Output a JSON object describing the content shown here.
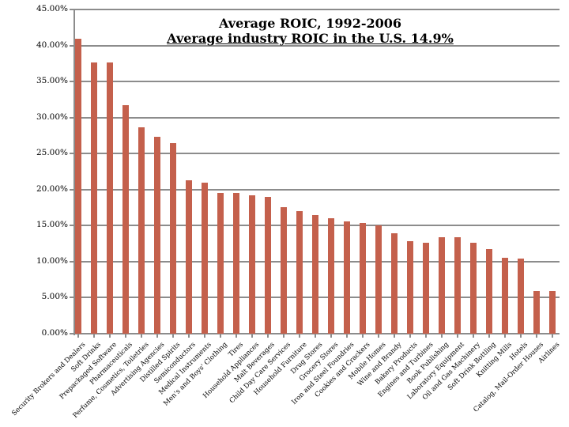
{
  "chart_data": {
    "type": "bar",
    "title": "Average ROIC, 1992-2006",
    "subtitle": "Average industry ROIC in the U.S. 14.9%",
    "categories": [
      "Security Brokers and Dealers",
      "Soft Drinks",
      "Prepackaged Software",
      "Pharmaceuticals",
      "Perfume, Cosmetics, Toiletries",
      "Advertising Agencies",
      "Distilled Spirits",
      "Semiconductors",
      "Medical Instruments",
      "Men's and Boys' Clothing",
      "Tires",
      "Household Appliances",
      "Malt Beverages",
      "Child Day Care Services",
      "Household Furniture",
      "Drug Stores",
      "Grocery Stores",
      "Iron and Steel Foundries",
      "Cookies and Crackers",
      "Mobile Homes",
      "Wine and Brandy",
      "Bakery Products",
      "Engines and Turbines",
      "Book Publishing",
      "Laboratory Equipment",
      "Oil and Gas Machinery",
      "Soft Drink Bottling",
      "Knitting Mills",
      "Hotels",
      "Catalog, Mail-Order Houses",
      "Airlines"
    ],
    "values": [
      40.9,
      37.6,
      37.6,
      31.7,
      28.6,
      27.3,
      26.4,
      21.3,
      21.0,
      19.5,
      19.5,
      19.2,
      19.0,
      17.6,
      17.0,
      16.5,
      16.0,
      15.6,
      15.4,
      15.0,
      13.9,
      12.8,
      12.6,
      13.4,
      13.4,
      12.6,
      11.7,
      10.5,
      10.4,
      5.9,
      5.9
    ],
    "xlabel": "",
    "ylabel": "",
    "ylim": [
      0,
      45
    ],
    "ytick_step": 5,
    "y_tick_labels": [
      "45.00%",
      "40.00%",
      "35.00%",
      "30.00%",
      "25.00%",
      "20.00%",
      "15.00%",
      "10.00%",
      "5.00%",
      "0.00%"
    ],
    "legend": "none",
    "grid": "horizontal",
    "colors": {
      "bar": "#C4604C",
      "gridline": "#8C8C8C",
      "axis": "#8C8C8C",
      "text": "#000000",
      "background": "#FFFFFF"
    }
  }
}
